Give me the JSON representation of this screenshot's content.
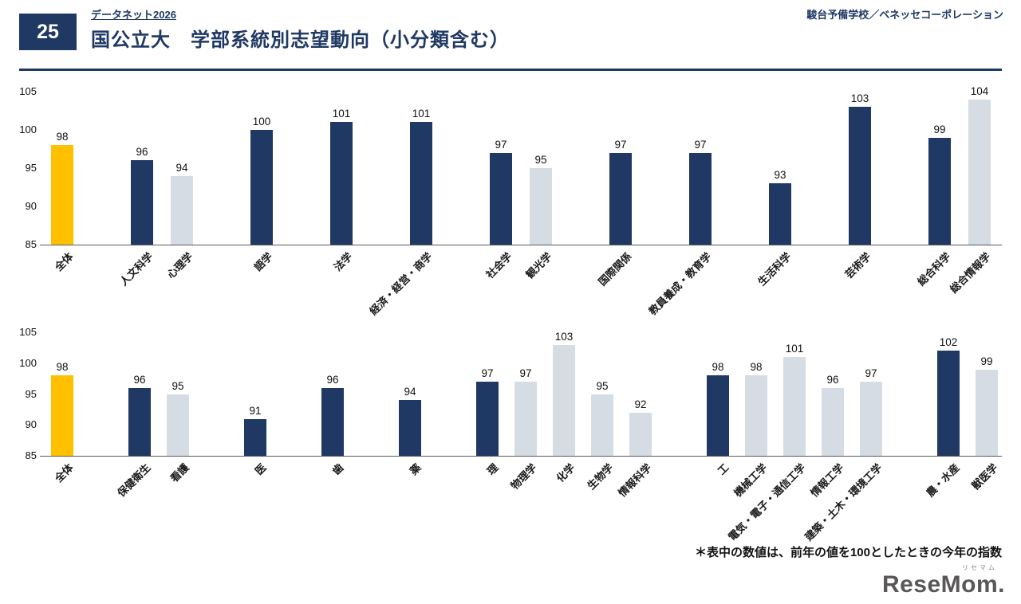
{
  "header": {
    "slide_number": "25",
    "brand": "データネット2026",
    "title": "国公立大　学部系統別志望動向（小分類含む）",
    "source": "駿台予備学校／ベネッセコーポレーション"
  },
  "footnote": "＊表中の数値は、前年の値を100としたときの今年の指数",
  "logo": {
    "ruby": "リセマム",
    "text": "ReseMom."
  },
  "colors": {
    "accent": "#ffc000",
    "navy": "#1f3864",
    "gray": "#d6dce4"
  },
  "chart_data": [
    {
      "type": "bar",
      "title": "",
      "xlabel": "",
      "ylabel": "",
      "ylim": [
        85,
        105
      ],
      "yticks": [
        85,
        90,
        95,
        100,
        105
      ],
      "grid": false,
      "legend": "none",
      "note": "navy = major field, gray = sub field, accent = overall",
      "groups": [
        [
          {
            "label": "全体",
            "value": 98,
            "color": "accent"
          }
        ],
        [
          {
            "label": "人文科学",
            "value": 96,
            "color": "navy"
          },
          {
            "label": "心理学",
            "value": 94,
            "color": "gray"
          }
        ],
        [
          {
            "label": "語学",
            "value": 100,
            "color": "navy"
          }
        ],
        [
          {
            "label": "法学",
            "value": 101,
            "color": "navy"
          }
        ],
        [
          {
            "label": "経済・経営・商学",
            "value": 101,
            "color": "navy"
          }
        ],
        [
          {
            "label": "社会学",
            "value": 97,
            "color": "navy"
          },
          {
            "label": "観光学",
            "value": 95,
            "color": "gray"
          }
        ],
        [
          {
            "label": "国際関係",
            "value": 97,
            "color": "navy"
          }
        ],
        [
          {
            "label": "教員養成・教育学",
            "value": 97,
            "color": "navy"
          }
        ],
        [
          {
            "label": "生活科学",
            "value": 93,
            "color": "navy"
          }
        ],
        [
          {
            "label": "芸術学",
            "value": 103,
            "color": "navy"
          }
        ],
        [
          {
            "label": "総合科学",
            "value": 99,
            "color": "navy"
          },
          {
            "label": "総合情報学",
            "value": 104,
            "color": "gray"
          }
        ]
      ]
    },
    {
      "type": "bar",
      "title": "",
      "xlabel": "",
      "ylabel": "",
      "ylim": [
        85,
        105
      ],
      "yticks": [
        85,
        90,
        95,
        100,
        105
      ],
      "grid": false,
      "legend": "none",
      "note": "navy = major field, gray = sub field, accent = overall",
      "groups": [
        [
          {
            "label": "全体",
            "value": 98,
            "color": "accent"
          }
        ],
        [
          {
            "label": "保健衛生",
            "value": 96,
            "color": "navy"
          },
          {
            "label": "看護",
            "value": 95,
            "color": "gray"
          }
        ],
        [
          {
            "label": "医",
            "value": 91,
            "color": "navy"
          }
        ],
        [
          {
            "label": "歯",
            "value": 96,
            "color": "navy"
          }
        ],
        [
          {
            "label": "薬",
            "value": 94,
            "color": "navy"
          }
        ],
        [
          {
            "label": "理",
            "value": 97,
            "color": "navy"
          },
          {
            "label": "物理学",
            "value": 97,
            "color": "gray"
          },
          {
            "label": "化学",
            "value": 103,
            "color": "gray"
          },
          {
            "label": "生物学",
            "value": 95,
            "color": "gray"
          },
          {
            "label": "情報科学",
            "value": 92,
            "color": "gray"
          }
        ],
        [
          {
            "label": "工",
            "value": 98,
            "color": "navy"
          },
          {
            "label": "機械工学",
            "value": 98,
            "color": "gray"
          },
          {
            "label": "電気・電子・通信工学",
            "value": 101,
            "color": "gray"
          },
          {
            "label": "情報工学",
            "value": 96,
            "color": "gray"
          },
          {
            "label": "建築・土木・環境工学",
            "value": 97,
            "color": "gray"
          }
        ],
        [
          {
            "label": "農・水産",
            "value": 102,
            "color": "navy"
          },
          {
            "label": "獣医学",
            "value": 99,
            "color": "gray"
          }
        ]
      ]
    }
  ]
}
